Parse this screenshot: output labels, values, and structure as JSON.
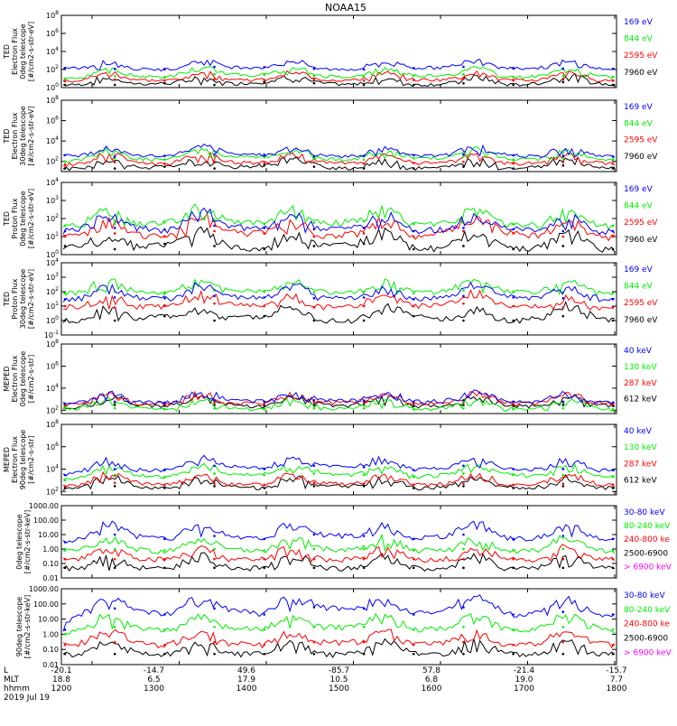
{
  "title": "NOAA15",
  "colors": {
    "blue": "#0000ff",
    "red": "#ff0000",
    "green": "#00ee00",
    "black": "#000000",
    "magenta": "#ff00ff"
  },
  "chart_data": [
    {
      "type": "line",
      "ylog": true,
      "ylabel": [
        "TED",
        "Electron Flux",
        "0deg telescope",
        "[#/cm2-s-str-eV]"
      ],
      "ytick_labels": [
        "10^0",
        "10^2",
        "10^4",
        "10^6",
        "10^8"
      ],
      "ylim": [
        1,
        100000000
      ],
      "series": [
        {
          "name": "7960 eV",
          "color": "black",
          "values": [
            2,
            2,
            3,
            2,
            4,
            3,
            2,
            2,
            3,
            2,
            4,
            2
          ]
        },
        {
          "name": "2595 eV",
          "color": "red",
          "values": [
            5,
            8,
            6,
            9,
            7,
            8,
            6,
            7,
            9,
            6,
            8,
            6
          ]
        },
        {
          "name": "844 eV",
          "color": "green",
          "values": [
            10,
            20,
            15,
            30,
            25,
            20,
            15,
            20,
            30,
            15,
            20,
            15
          ]
        },
        {
          "name": "169 eV",
          "color": "blue",
          "values": [
            150,
            120,
            100,
            200,
            180,
            120,
            100,
            150,
            200,
            150,
            120,
            120
          ]
        }
      ]
    },
    {
      "type": "line",
      "ylog": true,
      "ylabel": [
        "TED",
        "Electron Flux",
        "30deg telescope",
        "[#/cm2-s-str-eV]"
      ],
      "ytick_labels": [
        "10^2",
        "10^4",
        "10^6",
        "10^8"
      ],
      "ylim": [
        10,
        100000000
      ],
      "series": [
        {
          "name": "7960 eV",
          "color": "black",
          "values": [
            20,
            20,
            30,
            20,
            40,
            30,
            20,
            20,
            30,
            20,
            40,
            20
          ]
        },
        {
          "name": "2595 eV",
          "color": "red",
          "values": [
            50,
            80,
            60,
            90,
            70,
            80,
            60,
            70,
            90,
            60,
            80,
            60
          ]
        },
        {
          "name": "844 eV",
          "color": "green",
          "values": [
            100,
            200,
            150,
            300,
            250,
            200,
            150,
            200,
            300,
            150,
            200,
            150
          ]
        },
        {
          "name": "169 eV",
          "color": "blue",
          "values": [
            400,
            300,
            350,
            500,
            450,
            300,
            350,
            400,
            500,
            400,
            350,
            300
          ]
        }
      ]
    },
    {
      "type": "line",
      "ylog": true,
      "ylabel": [
        "TED",
        "Proton Flux",
        "0deg telescope",
        "[#/cm2-s-str-eV]"
      ],
      "ytick_labels": [
        "10^0",
        "10^1",
        "10^2",
        "10^3",
        "10^4"
      ],
      "ylim": [
        1,
        10000
      ],
      "series": [
        {
          "name": "7960 eV",
          "color": "black",
          "values": [
            3,
            2,
            4,
            3,
            2,
            3,
            4,
            2,
            3,
            2,
            3,
            2
          ]
        },
        {
          "name": "2595 eV",
          "color": "red",
          "values": [
            10,
            15,
            10,
            20,
            15,
            10,
            15,
            10,
            20,
            15,
            10,
            10
          ]
        },
        {
          "name": "844 eV",
          "color": "green",
          "values": [
            40,
            50,
            60,
            80,
            50,
            60,
            70,
            50,
            60,
            50,
            40,
            40
          ]
        },
        {
          "name": "169 eV",
          "color": "blue",
          "values": [
            20,
            30,
            25,
            40,
            30,
            25,
            30,
            20,
            30,
            25,
            20,
            20
          ]
        }
      ]
    },
    {
      "type": "line",
      "ylog": true,
      "ylabel": [
        "TED",
        "Proton Flux",
        "30deg telescope",
        "[#/cm2-s-str-eV]"
      ],
      "ytick_labels": [
        "10^-1",
        "10^0",
        "10^1",
        "10^2",
        "10^3",
        "10^4"
      ],
      "ylim": [
        0.1,
        10000
      ],
      "series": [
        {
          "name": "7960 eV",
          "color": "black",
          "values": [
            1,
            1,
            2,
            1,
            2,
            1,
            1,
            2,
            1,
            1,
            2,
            1
          ]
        },
        {
          "name": "2595 eV",
          "color": "red",
          "values": [
            10,
            8,
            10,
            15,
            10,
            8,
            10,
            10,
            15,
            10,
            8,
            8
          ]
        },
        {
          "name": "844 eV",
          "color": "green",
          "values": [
            80,
            100,
            90,
            120,
            100,
            90,
            100,
            80,
            120,
            100,
            90,
            80
          ]
        },
        {
          "name": "169 eV",
          "color": "blue",
          "values": [
            30,
            40,
            35,
            50,
            40,
            35,
            40,
            30,
            50,
            40,
            35,
            30
          ]
        }
      ]
    },
    {
      "type": "line",
      "ylog": true,
      "ylabel": [
        "MEPED",
        "Electron Flux",
        "0deg telescope",
        "[#/cm2-s-str]"
      ],
      "ytick_labels": [
        "10^2",
        "10^4",
        "10^6",
        "10^8"
      ],
      "ylim": [
        50,
        100000000
      ],
      "series": [
        {
          "name": "612 keV",
          "color": "black",
          "values": [
            200,
            300,
            250,
            300,
            250,
            300,
            300,
            250,
            300,
            250,
            300,
            250
          ]
        },
        {
          "name": "287 keV",
          "color": "red",
          "values": [
            300,
            500,
            400,
            500,
            400,
            500,
            500,
            400,
            500,
            400,
            500,
            400
          ]
        },
        {
          "name": "130 keV",
          "color": "green",
          "values": [
            150,
            150,
            120,
            150,
            120,
            150,
            150,
            120,
            150,
            120,
            150,
            120
          ]
        },
        {
          "name": "40 keV",
          "color": "blue",
          "values": [
            400,
            600,
            500,
            800,
            600,
            800,
            700,
            600,
            800,
            600,
            600,
            500
          ]
        }
      ]
    },
    {
      "type": "line",
      "ylog": true,
      "ylabel": [
        "MEPED",
        "Electron Flux",
        "90deg telescope",
        "[#/cm2-s-str]"
      ],
      "ytick_labels": [
        "10^2",
        "10^4",
        "10^6",
        "10^8"
      ],
      "ylim": [
        50,
        100000000
      ],
      "series": [
        {
          "name": "612 keV",
          "color": "black",
          "values": [
            200,
            300,
            200,
            300,
            200,
            300,
            300,
            200,
            300,
            200,
            300,
            200
          ]
        },
        {
          "name": "287 keV",
          "color": "red",
          "values": [
            300,
            600,
            400,
            500,
            400,
            600,
            500,
            400,
            500,
            400,
            500,
            400
          ]
        },
        {
          "name": "130 keV",
          "color": "green",
          "values": [
            1000,
            3000,
            2000,
            4000,
            3000,
            4000,
            3000,
            2000,
            4000,
            3000,
            3000,
            2000
          ]
        },
        {
          "name": "40 keV",
          "color": "blue",
          "values": [
            3000,
            10000,
            8000,
            20000,
            10000,
            20000,
            15000,
            8000,
            20000,
            10000,
            10000,
            8000
          ]
        }
      ]
    },
    {
      "type": "line",
      "ylog": true,
      "ylabel": [
        "0deg telescope",
        "[#/cm2-s-str-keV]"
      ],
      "ytick_labels": [
        "0.01",
        "0.10",
        "1.00",
        "10.00",
        "100.00",
        "1000.00"
      ],
      "ylim": [
        0.01,
        1000
      ],
      "series": [
        {
          "name": "> 6900 keV",
          "color": "magenta",
          "values": [
            null,
            null,
            null,
            null,
            null,
            null,
            null,
            null,
            null,
            null,
            null,
            null
          ]
        },
        {
          "name": "2500-6900",
          "color": "black",
          "values": [
            0.05,
            0.05,
            0.05,
            0.05,
            0.05,
            0.05,
            0.05,
            0.05,
            0.05,
            0.05,
            0.05,
            0.05
          ]
        },
        {
          "name": "240-800 ke",
          "color": "red",
          "values": [
            0.2,
            0.2,
            0.2,
            0.2,
            0.2,
            0.2,
            0.2,
            0.2,
            0.2,
            0.2,
            0.2,
            0.2
          ]
        },
        {
          "name": "80-240 keV",
          "color": "green",
          "values": [
            0.8,
            1,
            0.8,
            1,
            0.8,
            1,
            1,
            0.8,
            1,
            0.8,
            1,
            0.8
          ]
        },
        {
          "name": "30-80 keV",
          "color": "blue",
          "values": [
            3,
            10,
            5,
            8,
            5,
            10,
            8,
            5,
            10,
            5,
            8,
            5
          ]
        }
      ]
    },
    {
      "type": "line",
      "ylog": true,
      "ylabel": [
        "90deg telescope",
        "[#/cm2-s-str-keV]"
      ],
      "ytick_labels": [
        "0.01",
        "0.10",
        "1.00",
        "10.00",
        "100.00",
        "1000.00"
      ],
      "ylim": [
        0.01,
        1000
      ],
      "series": [
        {
          "name": "> 6900 keV",
          "color": "magenta",
          "values": [
            null,
            null,
            null,
            null,
            null,
            null,
            null,
            null,
            null,
            null,
            null,
            null
          ]
        },
        {
          "name": "2500-6900",
          "color": "black",
          "values": [
            0.05,
            0.05,
            0.05,
            0.05,
            0.05,
            0.05,
            0.05,
            0.05,
            0.05,
            0.05,
            0.05,
            0.05
          ]
        },
        {
          "name": "240-800 ke",
          "color": "red",
          "values": [
            0.2,
            0.3,
            0.2,
            0.3,
            0.2,
            0.3,
            0.3,
            0.2,
            0.3,
            0.2,
            0.3,
            0.2
          ]
        },
        {
          "name": "80-240 keV",
          "color": "green",
          "values": [
            1,
            3,
            2,
            3,
            2,
            3,
            3,
            2,
            3,
            2,
            3,
            2
          ]
        },
        {
          "name": "30-80 keV",
          "color": "blue",
          "values": [
            2,
            50,
            20,
            50,
            20,
            60,
            50,
            20,
            60,
            20,
            30,
            20
          ]
        }
      ]
    }
  ],
  "footer": {
    "row_labels": [
      "L",
      "MLT",
      "hhmm",
      "2019 Jul 19"
    ],
    "L": [
      "-20.1",
      "-14.7",
      "49.6",
      "-85.7",
      "57.8",
      "-21.4",
      "-15.7"
    ],
    "MLT": [
      "18.8",
      "6.5",
      "17.9",
      "10.5",
      "6.8",
      "19.0",
      "7.7"
    ],
    "hhmm": [
      "1200",
      "1300",
      "1400",
      "1500",
      "1600",
      "1700",
      "1800"
    ]
  }
}
